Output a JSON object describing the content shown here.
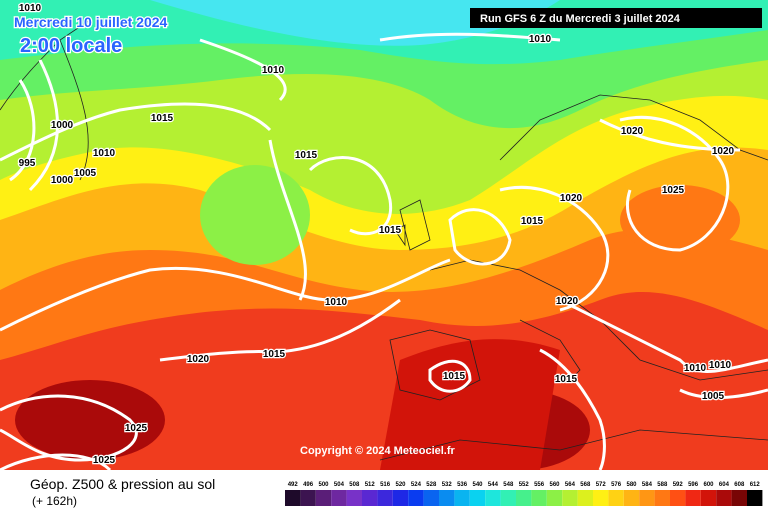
{
  "header": {
    "date": "Mercredi 10 juillet 2024",
    "time": "2:00 locale",
    "run": "Run GFS 6 Z du Mercredi 3 juillet 2024"
  },
  "isobar_labels": [
    "1010",
    "1010",
    "1010",
    "1015",
    "1000",
    "1010",
    "995",
    "1005",
    "1000",
    "1015",
    "1020",
    "1020",
    "1025",
    "1020",
    "1015",
    "1015",
    "1010",
    "1020",
    "1020",
    "1015",
    "1015",
    "1015",
    "1010",
    "1010",
    "1005",
    "1025",
    "1025"
  ],
  "copyright": "Copyright © 2024 Meteociel.fr",
  "legend": {
    "title": "Géop. Z500 & pression au sol",
    "subtitle": "(+ 162h)",
    "scale": [
      {
        "value": 492,
        "color": "#1e0a2a"
      },
      {
        "value": 496,
        "color": "#3c1450"
      },
      {
        "value": 500,
        "color": "#5a1e78"
      },
      {
        "value": 504,
        "color": "#6e28a0"
      },
      {
        "value": 508,
        "color": "#7832c8"
      },
      {
        "value": 512,
        "color": "#5a28d2"
      },
      {
        "value": 516,
        "color": "#3c28dc"
      },
      {
        "value": 520,
        "color": "#1e28e6"
      },
      {
        "value": 524,
        "color": "#0a3cf0"
      },
      {
        "value": 528,
        "color": "#0a64f0"
      },
      {
        "value": 532,
        "color": "#0a8cf0"
      },
      {
        "value": 536,
        "color": "#0ab4f0"
      },
      {
        "value": 540,
        "color": "#0ad2f0"
      },
      {
        "value": 544,
        "color": "#1ee6dc"
      },
      {
        "value": 548,
        "color": "#32f0b4"
      },
      {
        "value": 552,
        "color": "#46f08c"
      },
      {
        "value": 556,
        "color": "#64f064"
      },
      {
        "value": 560,
        "color": "#8cf046"
      },
      {
        "value": 564,
        "color": "#b4f032"
      },
      {
        "value": 568,
        "color": "#dcf01e"
      },
      {
        "value": 572,
        "color": "#fff014"
      },
      {
        "value": 576,
        "color": "#ffd214"
      },
      {
        "value": 580,
        "color": "#ffb414"
      },
      {
        "value": 584,
        "color": "#ff9614"
      },
      {
        "value": 588,
        "color": "#ff7814"
      },
      {
        "value": 592,
        "color": "#ff5014"
      },
      {
        "value": 596,
        "color": "#f02814"
      },
      {
        "value": 600,
        "color": "#d2140a"
      },
      {
        "value": 604,
        "color": "#aa0a0a"
      },
      {
        "value": 608,
        "color": "#780505"
      },
      {
        "value": 612,
        "color": "#000000"
      }
    ]
  }
}
